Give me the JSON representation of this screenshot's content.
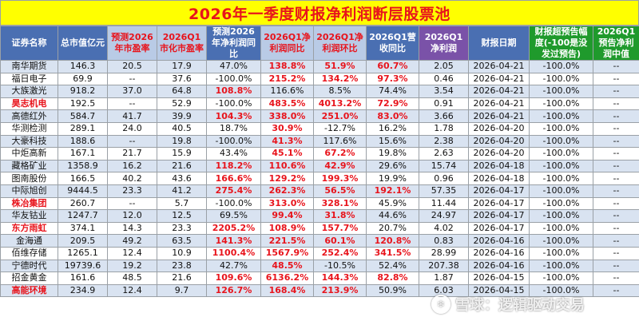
{
  "title": "2026年一季度财报净利润断层股票池",
  "headers": [
    "证券名称",
    "总市值亿元",
    "预测2026年市盈率",
    "2026Q1市化市盈率",
    "预测2026年净利润同比",
    "2026Q1净利润同比",
    "2026Q1净利润环比",
    "2026Q1营收同比",
    "2026Q1净利润",
    "财报日期",
    "财报超预告幅度(-100是没发过预告)",
    "2026Q1预告净利润中值"
  ],
  "rows": [
    {
      "name": "南华期货",
      "mc": "146.3",
      "pe26": "20.5",
      "peq1": "17.9",
      "np26": "47.0%",
      "npyoy": "138.8%",
      "npqoq": "51.9%",
      "rev": "60.7%",
      "np": "2.05",
      "date": "2026-04-21",
      "beat": "-100.0%",
      "fc": "--"
    },
    {
      "name": "福日电子",
      "mc": "69.9",
      "pe26": "--",
      "peq1": "37.6",
      "np26": "-100.0%",
      "npyoy": "215.2%",
      "npqoq": "134.2%",
      "rev": "97.3%",
      "np": "0.46",
      "date": "2026-04-21",
      "beat": "-100.0%",
      "fc": "--"
    },
    {
      "name": "大族激光",
      "mc": "918.2",
      "pe26": "37.0",
      "peq1": "64.8",
      "np26": "108.8%",
      "npyoy": "116.6%",
      "npqoq": "8.5%",
      "rev": "74.4%",
      "np": "3.54",
      "date": "2026-04-21",
      "beat": "-100.0%",
      "fc": "--"
    },
    {
      "name": "昊志机电",
      "mc": "192.5",
      "pe26": "--",
      "peq1": "52.9",
      "np26": "-100.0%",
      "npyoy": "483.5%",
      "npqoq": "4013.2%",
      "rev": "72.9%",
      "np": "0.91",
      "date": "2026-04-21",
      "beat": "-100.0%",
      "fc": "--"
    },
    {
      "name": "高德红外",
      "mc": "584.7",
      "pe26": "41.7",
      "peq1": "39.9",
      "np26": "104.3%",
      "npyoy": "338.0%",
      "npqoq": "251.0%",
      "rev": "83.0%",
      "np": "3.66",
      "date": "2026-04-21",
      "beat": "-100.0%",
      "fc": "--"
    },
    {
      "name": "华测检测",
      "mc": "289.1",
      "pe26": "24.0",
      "peq1": "40.5",
      "np26": "18.7%",
      "npyoy": "30.9%",
      "npqoq": "-12.7%",
      "rev": "16.2%",
      "np": "1.78",
      "date": "2026-04-20",
      "beat": "-100.0%",
      "fc": "--"
    },
    {
      "name": "大豪科技",
      "mc": "188.6",
      "pe26": "--",
      "peq1": "19.8",
      "np26": "-100.0%",
      "npyoy": "41.3%",
      "npqoq": "117.6%",
      "rev": "15.6%",
      "np": "2.38",
      "date": "2026-04-20",
      "beat": "-100.0%",
      "fc": "--"
    },
    {
      "name": "中炬高新",
      "mc": "167.1",
      "pe26": "21.7",
      "peq1": "15.9",
      "np26": "43.4%",
      "npyoy": "45.1%",
      "npqoq": "67.2%",
      "rev": "19.8%",
      "np": "2.63",
      "date": "2026-04-20",
      "beat": "-100.0%",
      "fc": "--"
    },
    {
      "name": "藏格矿业",
      "mc": "1358.9",
      "pe26": "16.2",
      "peq1": "21.6",
      "np26": "118.2%",
      "npyoy": "110.6%",
      "npqoq": "42.9%",
      "rev": "29.6%",
      "np": "15.74",
      "date": "2026-04-18",
      "beat": "-100.0%",
      "fc": "--"
    },
    {
      "name": "图南股份",
      "mc": "166.5",
      "pe26": "40.2",
      "peq1": "43.6",
      "np26": "166.6%",
      "npyoy": "129.2%",
      "npqoq": "199.3%",
      "rev": "19.9%",
      "np": "0.96",
      "date": "2026-04-18",
      "beat": "-100.0%",
      "fc": "--"
    },
    {
      "name": "中际旭创",
      "mc": "9444.5",
      "pe26": "23.3",
      "peq1": "41.2",
      "np26": "275.4%",
      "npyoy": "262.3%",
      "npqoq": "56.5%",
      "rev": "192.1%",
      "np": "57.35",
      "date": "2026-04-17",
      "beat": "-100.0%",
      "fc": "--"
    },
    {
      "name": "株冶集团",
      "mc": "260.7",
      "pe26": "--",
      "peq1": "5.7",
      "np26": "-100.0%",
      "npyoy": "313.0%",
      "npqoq": "328.1%",
      "rev": "45.9%",
      "np": "11.44",
      "date": "2026-04-17",
      "beat": "-100.0%",
      "fc": "--"
    },
    {
      "name": "华友钴业",
      "mc": "1247.7",
      "pe26": "12.0",
      "peq1": "12.5",
      "np26": "69.5%",
      "npyoy": "99.4%",
      "npqoq": "31.8%",
      "rev": "44.6%",
      "np": "24.97",
      "date": "2026-04-17",
      "beat": "-100.0%",
      "fc": "--"
    },
    {
      "name": "东方雨虹",
      "mc": "374.1",
      "pe26": "14.3",
      "peq1": "23.3",
      "np26": "2205.2%",
      "npyoy": "108.9%",
      "npqoq": "157.7%",
      "rev": "20.7%",
      "np": "4.02",
      "date": "2026-04-17",
      "beat": "-100.0%",
      "fc": "--"
    },
    {
      "name": "金海通",
      "mc": "209.5",
      "pe26": "49.2",
      "peq1": "63.5",
      "np26": "141.3%",
      "npyoy": "221.5%",
      "npqoq": "60.1%",
      "rev": "120.8%",
      "np": "0.83",
      "date": "2026-04-16",
      "beat": "-100.0%",
      "fc": "--"
    },
    {
      "name": "佰维存储",
      "mc": "1265.1",
      "pe26": "12.4",
      "peq1": "10.9",
      "np26": "1100.4%",
      "npyoy": "1567.9%",
      "npqoq": "252.4%",
      "rev": "341.5%",
      "np": "28.99",
      "date": "2026-04-16",
      "beat": "-100.0%",
      "fc": "--"
    },
    {
      "name": "宁德时代",
      "mc": "19739.6",
      "pe26": "19.2",
      "peq1": "23.8",
      "np26": "42.7%",
      "npyoy": "48.5%",
      "npqoq": "-10.5%",
      "rev": "52.4%",
      "np": "207.38",
      "date": "2026-04-16",
      "beat": "-100.0%",
      "fc": "--"
    },
    {
      "name": "招金黄金",
      "mc": "161.6",
      "pe26": "48.5",
      "peq1": "21.6",
      "np26": "109.6%",
      "npyoy": "6136.2%",
      "npqoq": "144.3%",
      "rev": "82.8%",
      "np": "1.87",
      "date": "2026-04-15",
      "beat": "-100.0%",
      "fc": "--"
    },
    {
      "name": "高能环境",
      "mc": "234.9",
      "pe26": "12.4",
      "peq1": "9.7",
      "np26": "126.7%",
      "npyoy": "168.4%",
      "npqoq": "213.9%",
      "rev": "50.9%",
      "np": "6.03",
      "date": "2026-04-15",
      "beat": "-100.0%",
      "fc": "--"
    }
  ],
  "watermark": "雪球：逻辑驱动交易",
  "colors": {
    "header_blue": "#4a6fb2",
    "header_highlight": "#b9cbe6",
    "header_purple": "#7a52a8",
    "header_green": "#1f9a2c",
    "title_bg": "#ffff00",
    "red": "#e8141c",
    "stripe": "#d9e3f1"
  }
}
